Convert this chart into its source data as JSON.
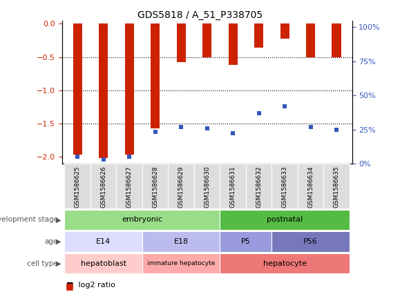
{
  "title": "GDS5818 / A_51_P338705",
  "samples": [
    "GSM1586625",
    "GSM1586626",
    "GSM1586627",
    "GSM1586628",
    "GSM1586629",
    "GSM1586630",
    "GSM1586631",
    "GSM1586632",
    "GSM1586633",
    "GSM1586634",
    "GSM1586635"
  ],
  "log2_ratio": [
    -1.97,
    -2.02,
    -1.97,
    -1.57,
    -0.58,
    -0.5,
    -0.62,
    -0.36,
    -0.22,
    -0.5,
    -0.5
  ],
  "percentile": [
    5,
    3,
    5,
    23,
    27,
    26,
    22,
    37,
    42,
    27,
    25
  ],
  "ylim_left": [
    -2.1,
    0.05
  ],
  "ylim_right": [
    0,
    105
  ],
  "yticks_left": [
    0,
    -0.5,
    -1.0,
    -1.5,
    -2.0
  ],
  "yticks_right": [
    0,
    25,
    50,
    75,
    100
  ],
  "bar_color": "#CC2200",
  "dot_color": "#3355BB",
  "bar_width": 0.35,
  "development_stage_list": [
    {
      "start": 0,
      "end": 6,
      "color": "#99DD88",
      "label": "embryonic"
    },
    {
      "start": 6,
      "end": 11,
      "color": "#55BB44",
      "label": "postnatal"
    }
  ],
  "age_list": [
    {
      "start": 0,
      "end": 3,
      "color": "#DDDDFF",
      "label": "E14"
    },
    {
      "start": 3,
      "end": 6,
      "color": "#BBBBEE",
      "label": "E18"
    },
    {
      "start": 6,
      "end": 8,
      "color": "#9999DD",
      "label": "P5"
    },
    {
      "start": 8,
      "end": 11,
      "color": "#7777BB",
      "label": "P56"
    }
  ],
  "cell_type_list": [
    {
      "start": 0,
      "end": 3,
      "color": "#FFCCCC",
      "label": "hepatoblast"
    },
    {
      "start": 3,
      "end": 6,
      "color": "#FFAAAA",
      "label": "immature hepatocyte"
    },
    {
      "start": 6,
      "end": 11,
      "color": "#EE7777",
      "label": "hepatocyte"
    }
  ],
  "row_labels": [
    "development stage",
    "age",
    "cell type"
  ],
  "bg_color": "#FFFFFF",
  "label_color": "#555555",
  "xtick_bg": "#DDDDDD"
}
